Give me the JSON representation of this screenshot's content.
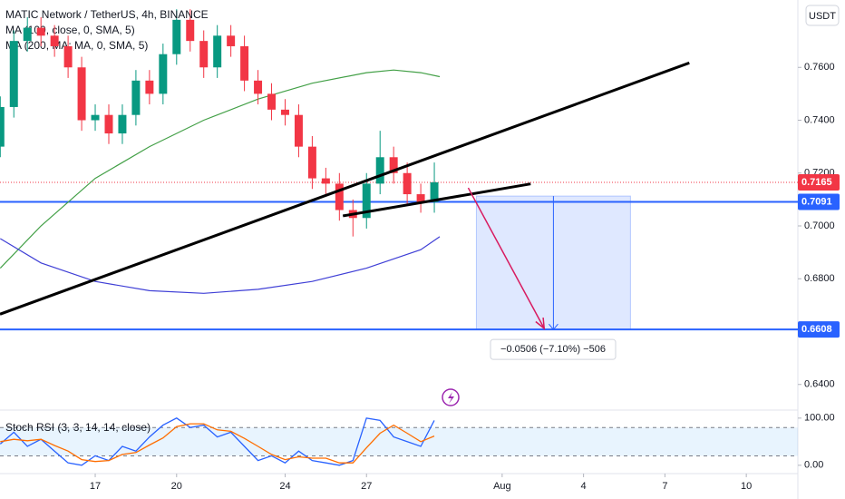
{
  "chart_data": [
    {
      "type": "candlestick",
      "title": "MATIC Network / TetherUS, 4h, BINANCE",
      "currency": "USDT",
      "up_color": "#089981",
      "down_color": "#f23645",
      "x": [
        13.5,
        14,
        14.5,
        15,
        15.5,
        16,
        16.5,
        17,
        17.5,
        18,
        18.5,
        19,
        19.5,
        20,
        20.5,
        21,
        21.5,
        22,
        22.5,
        23,
        23.5,
        24,
        24.5,
        25,
        25.5,
        26,
        26.5,
        27,
        27.5,
        28,
        28.5,
        29,
        29.5
      ],
      "open": [
        0.73,
        0.745,
        0.77,
        0.775,
        0.772,
        0.768,
        0.76,
        0.74,
        0.742,
        0.735,
        0.742,
        0.755,
        0.75,
        0.765,
        0.778,
        0.77,
        0.76,
        0.772,
        0.768,
        0.755,
        0.75,
        0.744,
        0.742,
        0.73,
        0.718,
        0.716,
        0.706,
        0.703,
        0.716,
        0.726,
        0.72,
        0.712,
        0.709
      ],
      "high": [
        0.749,
        0.774,
        0.779,
        0.779,
        0.776,
        0.772,
        0.764,
        0.746,
        0.746,
        0.746,
        0.759,
        0.759,
        0.769,
        0.782,
        0.782,
        0.774,
        0.776,
        0.776,
        0.772,
        0.759,
        0.754,
        0.748,
        0.746,
        0.734,
        0.722,
        0.72,
        0.71,
        0.72,
        0.736,
        0.73,
        0.724,
        0.716,
        0.724
      ],
      "low": [
        0.726,
        0.741,
        0.766,
        0.768,
        0.764,
        0.756,
        0.736,
        0.736,
        0.731,
        0.731,
        0.738,
        0.746,
        0.746,
        0.761,
        0.766,
        0.756,
        0.756,
        0.764,
        0.751,
        0.746,
        0.74,
        0.738,
        0.726,
        0.714,
        0.712,
        0.702,
        0.696,
        0.699,
        0.712,
        0.716,
        0.708,
        0.705,
        0.705
      ],
      "close": [
        0.745,
        0.77,
        0.775,
        0.772,
        0.768,
        0.76,
        0.74,
        0.742,
        0.735,
        0.742,
        0.755,
        0.75,
        0.765,
        0.778,
        0.77,
        0.76,
        0.772,
        0.768,
        0.755,
        0.75,
        0.744,
        0.742,
        0.73,
        0.718,
        0.716,
        0.706,
        0.703,
        0.716,
        0.726,
        0.72,
        0.712,
        0.709,
        0.7165
      ],
      "series": [
        {
          "name": "MA (100, close, 0, SMA, 5)",
          "color": "#43a047",
          "x": [
            13.5,
            15,
            17,
            19,
            21,
            23,
            25,
            27,
            28,
            29,
            29.7
          ],
          "values": [
            0.684,
            0.7,
            0.718,
            0.73,
            0.74,
            0.748,
            0.754,
            0.758,
            0.759,
            0.758,
            0.7565
          ]
        },
        {
          "name": "MA (200, MA: MA, 0, SMA, 5)",
          "color": "#3f3fd6",
          "x": [
            13.5,
            15,
            17,
            19,
            21,
            23,
            25,
            27,
            29,
            29.7
          ],
          "values": [
            0.6952,
            0.686,
            0.679,
            0.6755,
            0.6745,
            0.676,
            0.679,
            0.684,
            0.691,
            0.6959
          ]
        }
      ],
      "trendlines": [
        {
          "x": [
            13.49,
            38.9
          ],
          "values": [
            0.6666,
            0.7617
          ]
        },
        {
          "x": [
            26.13,
            33.05
          ],
          "values": [
            0.7038,
            0.7159
          ]
        }
      ],
      "levels": [
        {
          "value": 0.7165,
          "color": "#f23645"
        },
        {
          "value": 0.7091,
          "color": "#2962ff"
        },
        {
          "value": 0.6608,
          "color": "#2962ff"
        }
      ],
      "position": {
        "x": [
          31.05,
          36.73
        ],
        "values": [
          0.7113,
          0.6608
        ],
        "label": "−0.0506 (−7.10%) −506"
      },
      "arrow": {
        "x": [
          30.75,
          33.55
        ],
        "values": [
          0.7144,
          0.6612
        ]
      },
      "xlim": [
        13.49,
        42.9
      ],
      "xticks": [
        17,
        20,
        24,
        27,
        {
          "value": 32,
          "label": "Aug"
        },
        {
          "value": 35,
          "label": "4"
        },
        {
          "value": 38,
          "label": "7"
        },
        {
          "value": 41,
          "label": "10"
        }
      ],
      "ylim": [
        0.6303,
        0.7855
      ],
      "yticks": [
        {
          "value": 0.64,
          "label": "0.6400"
        },
        {
          "value": 0.66,
          "label": "0.6600"
        },
        {
          "value": 0.68,
          "label": "0.6800"
        },
        {
          "value": 0.7,
          "label": "0.7000"
        },
        {
          "value": 0.72,
          "label": "0.7200"
        },
        {
          "value": 0.74,
          "label": "0.7400"
        },
        {
          "value": 0.76,
          "label": "0.7600"
        }
      ]
    },
    {
      "type": "line",
      "title": "Stoch RSI (3, 3, 14, 14, close)",
      "x": [
        13.5,
        14,
        14.5,
        15,
        15.5,
        16,
        16.5,
        17,
        17.5,
        18,
        18.5,
        19,
        19.5,
        20,
        20.5,
        21,
        21.5,
        22,
        22.5,
        23,
        23.5,
        24,
        24.5,
        25,
        25.5,
        26,
        26.5,
        27,
        27.5,
        28,
        28.5,
        29,
        29.5
      ],
      "series": [
        {
          "color": "#2962ff",
          "values": [
            45,
            70,
            40,
            55,
            30,
            5,
            0,
            20,
            10,
            40,
            30,
            60,
            85,
            100,
            80,
            85,
            60,
            70,
            40,
            10,
            20,
            5,
            30,
            10,
            5,
            0,
            10,
            100,
            95,
            60,
            50,
            40,
            95
          ]
        },
        {
          "color": "#ff6d00",
          "values": [
            50,
            55,
            52,
            55,
            42,
            30,
            12,
            8,
            10,
            23,
            27,
            43,
            58,
            82,
            88,
            88,
            75,
            72,
            57,
            40,
            23,
            12,
            18,
            15,
            15,
            5,
            5,
            37,
            68,
            85,
            68,
            50,
            62
          ]
        }
      ],
      "bands": [
        20,
        80
      ],
      "xlim": [
        13.49,
        42.9
      ],
      "ylim": [
        -33,
        117
      ],
      "yticks": [
        {
          "value": 100,
          "label": "100.00"
        },
        {
          "value": 0,
          "label": "0.00"
        }
      ]
    }
  ]
}
